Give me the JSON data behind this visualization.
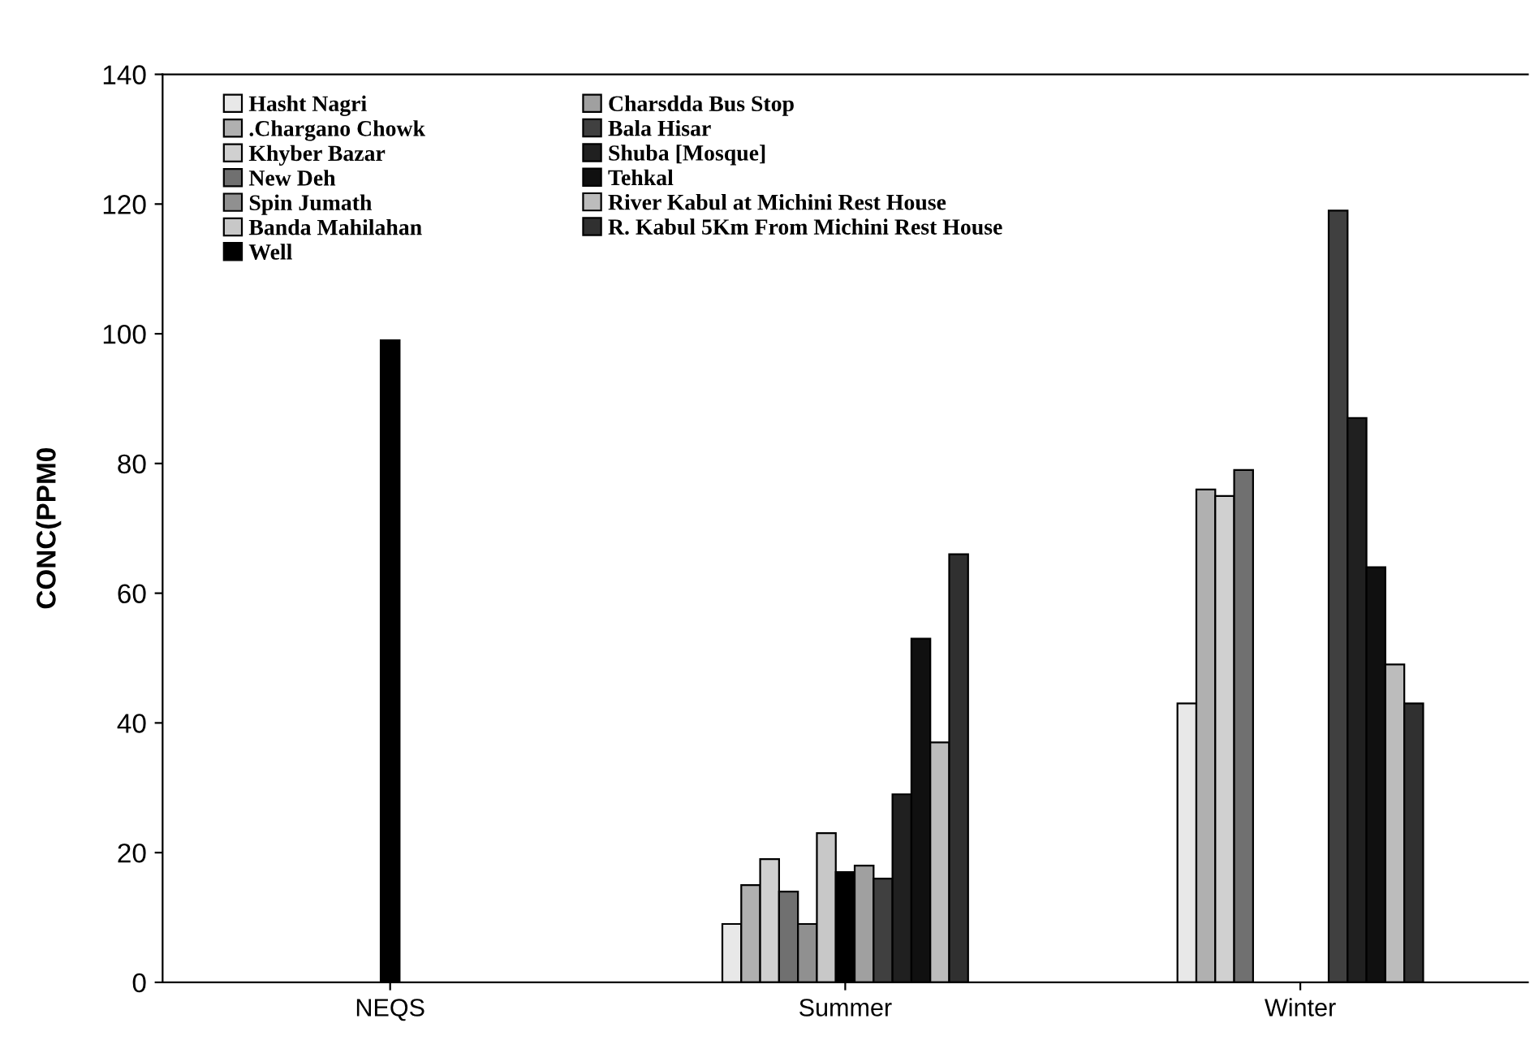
{
  "chart_data": {
    "type": "bar",
    "ylabel": "CONC(PPM0",
    "categories": [
      "NEQS",
      "Summer",
      "Winter"
    ],
    "series": [
      {
        "name": "Hasht Nagri",
        "color": "#e8e8e8",
        "values": [
          null,
          9,
          43
        ]
      },
      {
        "name": ".Chargano Chowk",
        "color": "#b0b0b0",
        "values": [
          null,
          15,
          76
        ]
      },
      {
        "name": "Khyber Bazar",
        "color": "#d0d0d0",
        "values": [
          null,
          19,
          75
        ]
      },
      {
        "name": "New Deh",
        "color": "#707070",
        "values": [
          null,
          14,
          79
        ]
      },
      {
        "name": "Spin Jumath",
        "color": "#909090",
        "values": [
          null,
          9,
          null
        ]
      },
      {
        "name": "Banda Mahilahan",
        "color": "#c8c8c8",
        "values": [
          null,
          23,
          null
        ]
      },
      {
        "name": "Well",
        "color": "#000000",
        "values": [
          99,
          17,
          null
        ]
      },
      {
        "name": "Charsdda Bus Stop",
        "color": "#a0a0a0",
        "values": [
          null,
          18,
          null
        ]
      },
      {
        "name": "Bala Hisar",
        "color": "#404040",
        "values": [
          null,
          16,
          119
        ]
      },
      {
        "name": "Shuba [Mosque]",
        "color": "#202020",
        "values": [
          null,
          29,
          87
        ]
      },
      {
        "name": "Tehkal",
        "color": "#101010",
        "values": [
          null,
          53,
          64
        ]
      },
      {
        "name": "River Kabul at Michini Rest House",
        "color": "#bcbcbc",
        "values": [
          null,
          37,
          49
        ]
      },
      {
        "name": "R. Kabul 5Km From Michini Rest House",
        "color": "#303030",
        "values": [
          null,
          66,
          43
        ]
      }
    ],
    "ylim": [
      0,
      140
    ],
    "yticks": [
      0,
      20,
      40,
      60,
      80,
      100,
      120,
      140
    ],
    "grid": false,
    "legend": "top left"
  }
}
